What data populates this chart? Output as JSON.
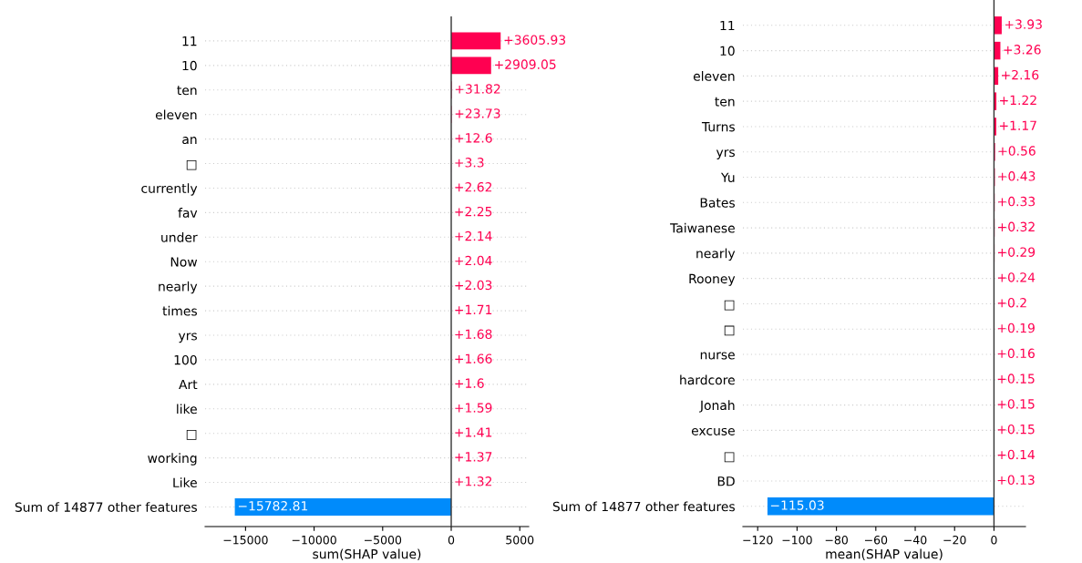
{
  "chart_data": [
    {
      "type": "bar",
      "orientation": "horizontal",
      "xlabel": "sum(SHAP value)",
      "categories": [
        "11",
        "10",
        "ten",
        "eleven",
        "an",
        "□",
        "currently",
        "fav",
        "under",
        "Now",
        "nearly",
        "times",
        "yrs",
        "100",
        "Art",
        "like",
        "□",
        "working",
        "Like",
        "Sum of 14877 other features"
      ],
      "values": [
        3605.93,
        2909.05,
        31.82,
        23.73,
        12.6,
        3.3,
        2.62,
        2.25,
        2.14,
        2.04,
        2.03,
        1.71,
        1.68,
        1.66,
        1.6,
        1.59,
        1.41,
        1.37,
        1.32,
        -15782.81
      ],
      "colors": [
        "#ff0051",
        "#ff0051",
        "#ff0051",
        "#ff0051",
        "#ff0051",
        "#ff0051",
        "#ff0051",
        "#ff0051",
        "#ff0051",
        "#ff0051",
        "#ff0051",
        "#ff0051",
        "#ff0051",
        "#ff0051",
        "#ff0051",
        "#ff0051",
        "#ff0051",
        "#ff0051",
        "#ff0051",
        "#008bfb"
      ],
      "value_labels": [
        "+3605.93",
        "+2909.05",
        "+31.82",
        "+23.73",
        "+12.6",
        "+3.3",
        "+2.62",
        "+2.25",
        "+2.14",
        "+2.04",
        "+2.03",
        "+1.71",
        "+1.68",
        "+1.66",
        "+1.6",
        "+1.59",
        "+1.41",
        "+1.37",
        "+1.32",
        "−15782.81"
      ],
      "xlim": [
        -17950,
        5650
      ],
      "xticks": [
        {
          "value": -15000,
          "label": "−15000"
        },
        {
          "value": -10000,
          "label": "−10000"
        },
        {
          "value": -5000,
          "label": "−5000"
        },
        0,
        5000
      ],
      "ref_lines": [
        {
          "axis": "x",
          "value": 0,
          "color": "#333333"
        }
      ],
      "grid": "y",
      "legend": false
    },
    {
      "type": "bar",
      "orientation": "horizontal",
      "xlabel": "mean(SHAP value)",
      "categories": [
        "11",
        "10",
        "eleven",
        "ten",
        "Turns",
        "yrs",
        "Yu",
        "Bates",
        "Taiwanese",
        "nearly",
        "Rooney",
        "□",
        "□",
        "nurse",
        "hardcore",
        "Jonah",
        "excuse",
        "□",
        "BD",
        "Sum of 14877 other features"
      ],
      "values": [
        3.93,
        3.26,
        2.16,
        1.22,
        1.17,
        0.56,
        0.43,
        0.33,
        0.32,
        0.29,
        0.24,
        0.2,
        0.19,
        0.16,
        0.15,
        0.15,
        0.15,
        0.14,
        0.13,
        -115.03
      ],
      "colors": [
        "#ff0051",
        "#ff0051",
        "#ff0051",
        "#ff0051",
        "#ff0051",
        "#ff0051",
        "#ff0051",
        "#ff0051",
        "#ff0051",
        "#ff0051",
        "#ff0051",
        "#ff0051",
        "#ff0051",
        "#ff0051",
        "#ff0051",
        "#ff0051",
        "#ff0051",
        "#ff0051",
        "#ff0051",
        "#008bfb"
      ],
      "value_labels": [
        "+3.93",
        "+3.26",
        "+2.16",
        "+1.22",
        "+1.17",
        "+0.56",
        "+0.43",
        "+0.33",
        "+0.32",
        "+0.29",
        "+0.24",
        "+0.2",
        "+0.19",
        "+0.16",
        "+0.15",
        "+0.15",
        "+0.15",
        "+0.14",
        "+0.13",
        "−115.03"
      ],
      "xlim": [
        -127.5,
        16
      ],
      "xticks": [
        {
          "value": -120,
          "label": "−120"
        },
        {
          "value": -100,
          "label": "−100"
        },
        {
          "value": -80,
          "label": "−80"
        },
        {
          "value": -60,
          "label": "−60"
        },
        {
          "value": -40,
          "label": "−40"
        },
        {
          "value": -20,
          "label": "−20"
        },
        0
      ],
      "ref_lines": [
        {
          "axis": "x",
          "value": 0,
          "color": "#333333"
        }
      ],
      "grid": "y",
      "legend": false
    }
  ]
}
